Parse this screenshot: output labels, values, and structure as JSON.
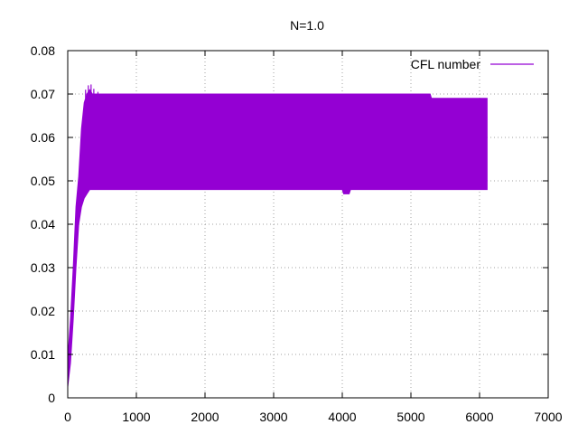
{
  "chart_data": {
    "type": "line",
    "title": "N=1.0",
    "xlabel": "",
    "ylabel": "",
    "xlim": [
      0,
      7000
    ],
    "ylim": [
      0,
      0.08
    ],
    "x_ticks": [
      "0",
      "1000",
      "2000",
      "3000",
      "4000",
      "5000",
      "6000",
      "7000"
    ],
    "y_ticks": [
      "0",
      "0.01",
      "0.02",
      "0.03",
      "0.04",
      "0.05",
      "0.06",
      "0.07",
      "0.08"
    ],
    "grid": true,
    "legend_position": "top-right",
    "series": [
      {
        "name": "CFL number",
        "color": "#9400d3",
        "band": [
          {
            "x": 0,
            "low": 0.0025,
            "high": 0.009
          },
          {
            "x": 40,
            "low": 0.008,
            "high": 0.018
          },
          {
            "x": 80,
            "low": 0.018,
            "high": 0.03
          },
          {
            "x": 120,
            "low": 0.03,
            "high": 0.044
          },
          {
            "x": 160,
            "low": 0.04,
            "high": 0.051
          },
          {
            "x": 200,
            "low": 0.044,
            "high": 0.062
          },
          {
            "x": 240,
            "low": 0.046,
            "high": 0.068
          },
          {
            "x": 280,
            "low": 0.047,
            "high": 0.07
          },
          {
            "x": 320,
            "low": 0.048,
            "high": 0.071
          },
          {
            "x": 360,
            "low": 0.048,
            "high": 0.07
          },
          {
            "x": 700,
            "low": 0.048,
            "high": 0.07
          },
          {
            "x": 4000,
            "low": 0.048,
            "high": 0.07
          },
          {
            "x": 4020,
            "low": 0.047,
            "high": 0.07
          },
          {
            "x": 4100,
            "low": 0.047,
            "high": 0.07
          },
          {
            "x": 4120,
            "low": 0.048,
            "high": 0.07
          },
          {
            "x": 5280,
            "low": 0.048,
            "high": 0.07
          },
          {
            "x": 5300,
            "low": 0.048,
            "high": 0.069
          },
          {
            "x": 6110,
            "low": 0.048,
            "high": 0.069
          }
        ],
        "spikes": [
          {
            "x": 260,
            "value": 0.071
          },
          {
            "x": 300,
            "value": 0.072
          },
          {
            "x": 340,
            "value": 0.0722
          },
          {
            "x": 380,
            "value": 0.0712
          },
          {
            "x": 440,
            "value": 0.0705
          }
        ]
      }
    ]
  }
}
